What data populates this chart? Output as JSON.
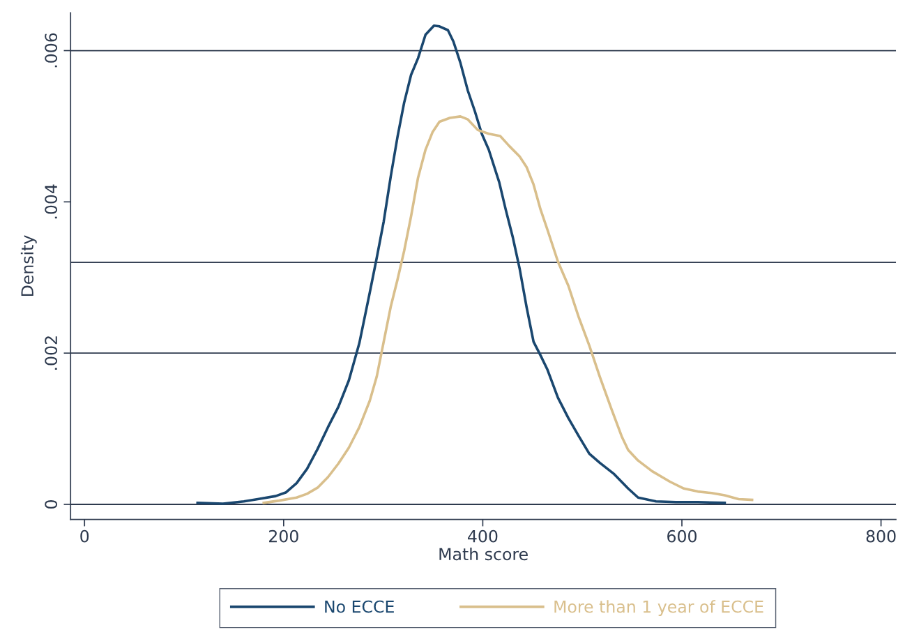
{
  "chart_data": {
    "type": "line",
    "xlabel": "Math score",
    "ylabel": "Density",
    "xlim": [
      -14,
      815
    ],
    "xticks": [
      0,
      200,
      400,
      600,
      800
    ],
    "ylim": [
      -0.0002,
      0.0065
    ],
    "yticks": [
      {
        "value": 0,
        "label": "0"
      },
      {
        "value": 0.002,
        "label": ".002"
      },
      {
        "value": 0.004,
        "label": ".004"
      },
      {
        "value": 0.006,
        "label": ".006"
      }
    ],
    "grid": false,
    "legend": "bottom",
    "marker": "none",
    "line_style": "solid",
    "ref_lines": [
      {
        "axis": "y",
        "value": 0,
        "color": "#2e3a4e"
      },
      {
        "axis": "y",
        "value": 0.002,
        "color": "#2e3a4e"
      },
      {
        "axis": "y",
        "value": 0.0032,
        "color": "#2e3a4e"
      },
      {
        "axis": "y",
        "value": 0.006,
        "color": "#2e3a4e"
      }
    ],
    "series": [
      {
        "name": "No ECCE",
        "color": "#1a476f",
        "x": [
          113.5,
          139,
          160,
          174,
          192,
          202.5,
          213,
          223.5,
          234,
          244.5,
          255,
          265.5,
          276,
          286.5,
          293.5,
          300.5,
          307.5,
          314.5,
          321,
          328,
          335,
          342.5,
          351,
          356.5,
          365,
          370.5,
          377.5,
          385,
          392,
          399,
          406,
          416.5,
          423,
          430,
          437,
          444,
          451,
          458,
          465,
          475.5,
          486,
          496.5,
          507,
          517.5,
          532,
          546,
          556,
          574,
          594,
          616,
          643
        ],
        "values": [
          2e-05,
          1e-05,
          4e-05,
          7e-05,
          0.00011,
          0.00016,
          0.00028,
          0.00047,
          0.00073,
          0.00102,
          0.00129,
          0.00164,
          0.00213,
          0.0028,
          0.00326,
          0.00374,
          0.00433,
          0.00487,
          0.00531,
          0.00568,
          0.0059,
          0.00621,
          0.00633,
          0.00632,
          0.00627,
          0.00612,
          0.00584,
          0.00547,
          0.0052,
          0.0049,
          0.00469,
          0.00426,
          0.0039,
          0.00354,
          0.00312,
          0.00261,
          0.00215,
          0.00197,
          0.00178,
          0.00141,
          0.00114,
          0.0009,
          0.00067,
          0.00055,
          0.0004,
          0.00021,
          9e-05,
          4e-05,
          3e-05,
          3e-05,
          2e-05
        ]
      },
      {
        "name": "More than 1 year of ECCE",
        "color": "#d9bf8c",
        "x": [
          180,
          195.5,
          213,
          223.5,
          234,
          244.5,
          255,
          265.5,
          276,
          286.5,
          293.5,
          300.5,
          307.5,
          314.5,
          321,
          328,
          335,
          342.5,
          349.5,
          356.5,
          367,
          377.5,
          385,
          395,
          406,
          417.5,
          426.5,
          437,
          444,
          451,
          458,
          465,
          475.5,
          486,
          496.5,
          507,
          517.5,
          529,
          539.5,
          546,
          556,
          570,
          588,
          602,
          616,
          630,
          643,
          657,
          670.5
        ],
        "values": [
          2e-05,
          5e-05,
          9e-05,
          0.00014,
          0.00022,
          0.00036,
          0.00054,
          0.00075,
          0.00102,
          0.00137,
          0.00169,
          0.00215,
          0.00261,
          0.00298,
          0.00335,
          0.00381,
          0.00432,
          0.00469,
          0.00492,
          0.00506,
          0.00511,
          0.00513,
          0.00509,
          0.00495,
          0.0049,
          0.00487,
          0.00474,
          0.0046,
          0.00446,
          0.00423,
          0.0039,
          0.00363,
          0.00321,
          0.00289,
          0.00247,
          0.0021,
          0.00169,
          0.00127,
          0.0009,
          0.00072,
          0.00058,
          0.00044,
          0.0003,
          0.00021,
          0.00017,
          0.00015,
          0.00012,
          7e-05,
          6e-05
        ]
      }
    ]
  }
}
